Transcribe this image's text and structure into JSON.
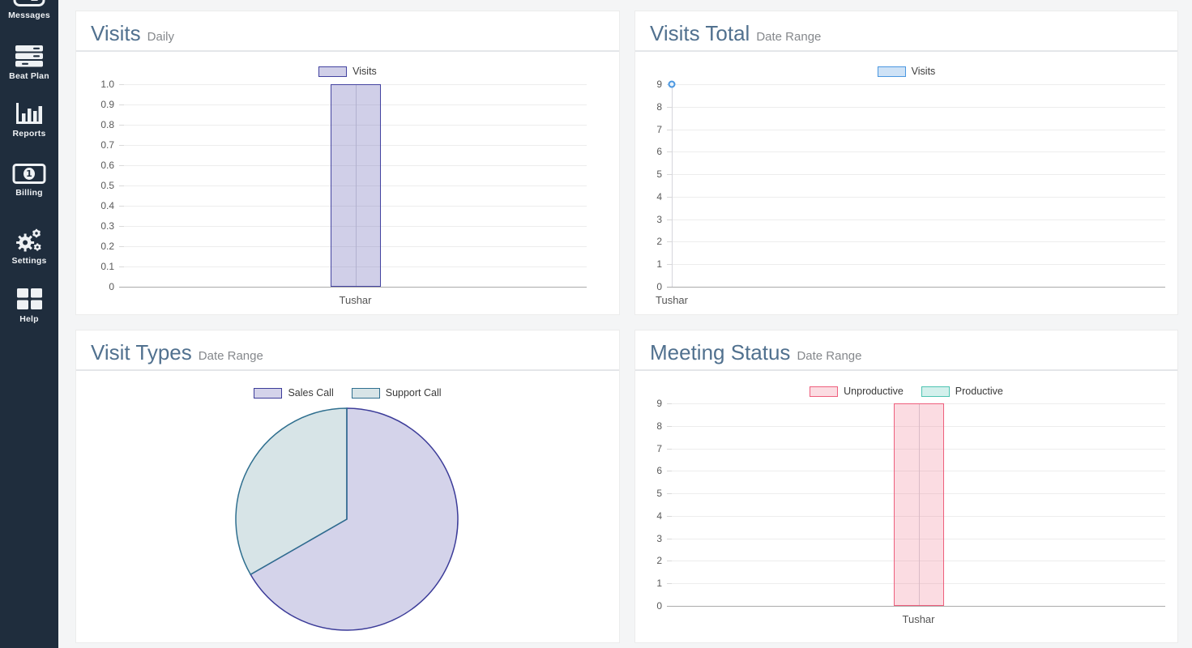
{
  "sidebar": {
    "bg": "#1f2d3d",
    "items": [
      {
        "label": "Messages",
        "icon": "chat-icon"
      },
      {
        "label": "Beat Plan",
        "icon": "server-stack-icon"
      },
      {
        "label": "Reports",
        "icon": "bar-chart-icon"
      },
      {
        "label": "Billing",
        "icon": "banknote-icon"
      },
      {
        "label": "Settings",
        "icon": "gears-icon"
      },
      {
        "label": "Help",
        "icon": "grid-icon"
      }
    ]
  },
  "chart_data": [
    {
      "id": "visits-daily",
      "type": "bar",
      "title": "Visits",
      "subtitle": "Daily",
      "categories": [
        "Tushar"
      ],
      "series": [
        {
          "name": "Visits",
          "values": [
            1.0
          ],
          "fill": "rgba(99,97,178,0.30)",
          "border": "#4343a0"
        }
      ],
      "ylim": [
        0,
        1.0
      ],
      "yticks": [
        "1.0",
        "0.9",
        "0.8",
        "0.7",
        "0.6",
        "0.5",
        "0.4",
        "0.3",
        "0.2",
        "0.1",
        "0"
      ],
      "xlabel": "",
      "ylabel": "",
      "grid": true,
      "legend_position": "top"
    },
    {
      "id": "visits-total",
      "type": "line",
      "title": "Visits Total",
      "subtitle": "Date Range",
      "categories": [
        "Tushar"
      ],
      "series": [
        {
          "name": "Visits",
          "values": [
            9
          ],
          "fill": "rgba(116,172,228,0.35)",
          "border": "#4a97e0"
        }
      ],
      "ylim": [
        0,
        9
      ],
      "yticks": [
        "9",
        "8",
        "7",
        "6",
        "5",
        "4",
        "3",
        "2",
        "1",
        "0"
      ],
      "xlabel": "",
      "ylabel": "",
      "grid": true,
      "legend_position": "top"
    },
    {
      "id": "visit-types",
      "type": "pie",
      "title": "Visit Types",
      "subtitle": "Date Range",
      "slices": [
        {
          "label": "Sales Call",
          "percent": 66.7,
          "fill": "rgba(99,97,178,0.28)",
          "border": "#3c3c99"
        },
        {
          "label": "Support Call",
          "percent": 33.3,
          "fill": "rgba(72,130,145,0.22)",
          "border": "#2f6f8f"
        }
      ],
      "legend_position": "top"
    },
    {
      "id": "meeting-status",
      "type": "bar",
      "title": "Meeting Status",
      "subtitle": "Date Range",
      "categories": [
        "Tushar"
      ],
      "series": [
        {
          "name": "Unproductive",
          "values": [
            9
          ],
          "fill": "rgba(238,95,125,0.22)",
          "border": "#ee5f7d"
        },
        {
          "name": "Productive",
          "values": [
            0
          ],
          "fill": "rgba(78,196,178,0.25)",
          "border": "#4ec4b2"
        }
      ],
      "ylim": [
        0,
        9
      ],
      "yticks": [
        "9",
        "8",
        "7",
        "6",
        "5",
        "4",
        "3",
        "2",
        "1",
        "0"
      ],
      "xlabel": "",
      "ylabel": "",
      "grid": true,
      "legend_position": "top"
    }
  ]
}
